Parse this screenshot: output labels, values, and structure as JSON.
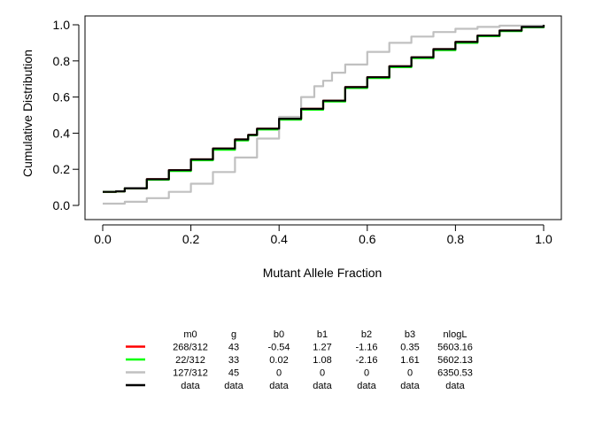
{
  "chart_data": {
    "type": "line",
    "title": "",
    "xlabel": "Mutant Allele Fraction",
    "ylabel": "Cumulative Distribution",
    "xlim": [
      0,
      1
    ],
    "ylim": [
      0,
      1
    ],
    "x_ticks": [
      "0.0",
      "0.2",
      "0.4",
      "0.6",
      "0.8",
      "1.0"
    ],
    "y_ticks": [
      "0.0",
      "0.2",
      "0.4",
      "0.6",
      "0.8",
      "1.0"
    ],
    "grid": false,
    "series": [
      {
        "color": "#ff0000",
        "points": [
          [
            0,
            0.075
          ],
          [
            0.03,
            0.078
          ],
          [
            0.05,
            0.095
          ],
          [
            0.1,
            0.145
          ],
          [
            0.15,
            0.195
          ],
          [
            0.2,
            0.255
          ],
          [
            0.25,
            0.315
          ],
          [
            0.3,
            0.365
          ],
          [
            0.33,
            0.39
          ],
          [
            0.35,
            0.425
          ],
          [
            0.4,
            0.48
          ],
          [
            0.45,
            0.535
          ],
          [
            0.5,
            0.58
          ],
          [
            0.55,
            0.655
          ],
          [
            0.6,
            0.71
          ],
          [
            0.65,
            0.77
          ],
          [
            0.7,
            0.82
          ],
          [
            0.75,
            0.865
          ],
          [
            0.8,
            0.905
          ],
          [
            0.85,
            0.94
          ],
          [
            0.9,
            0.968
          ],
          [
            0.95,
            0.988
          ],
          [
            1.0,
            1.0
          ]
        ]
      },
      {
        "color": "#00ff00",
        "points": [
          [
            0,
            0.075
          ],
          [
            0.03,
            0.078
          ],
          [
            0.05,
            0.095
          ],
          [
            0.1,
            0.142
          ],
          [
            0.15,
            0.19
          ],
          [
            0.2,
            0.25
          ],
          [
            0.25,
            0.308
          ],
          [
            0.3,
            0.36
          ],
          [
            0.33,
            0.388
          ],
          [
            0.35,
            0.42
          ],
          [
            0.4,
            0.475
          ],
          [
            0.45,
            0.53
          ],
          [
            0.5,
            0.575
          ],
          [
            0.55,
            0.65
          ],
          [
            0.6,
            0.705
          ],
          [
            0.65,
            0.765
          ],
          [
            0.7,
            0.815
          ],
          [
            0.75,
            0.86
          ],
          [
            0.8,
            0.9
          ],
          [
            0.85,
            0.937
          ],
          [
            0.9,
            0.965
          ],
          [
            0.95,
            0.986
          ],
          [
            1.0,
            1.0
          ]
        ]
      },
      {
        "color": "#c0c0c0",
        "points": [
          [
            0,
            0.01
          ],
          [
            0.05,
            0.02
          ],
          [
            0.1,
            0.04
          ],
          [
            0.15,
            0.075
          ],
          [
            0.2,
            0.12
          ],
          [
            0.25,
            0.185
          ],
          [
            0.3,
            0.265
          ],
          [
            0.35,
            0.37
          ],
          [
            0.4,
            0.49
          ],
          [
            0.45,
            0.6
          ],
          [
            0.48,
            0.66
          ],
          [
            0.5,
            0.69
          ],
          [
            0.52,
            0.735
          ],
          [
            0.55,
            0.78
          ],
          [
            0.6,
            0.85
          ],
          [
            0.65,
            0.9
          ],
          [
            0.7,
            0.935
          ],
          [
            0.75,
            0.96
          ],
          [
            0.8,
            0.978
          ],
          [
            0.85,
            0.988
          ],
          [
            0.9,
            0.995
          ],
          [
            1.0,
            1.0
          ]
        ]
      },
      {
        "color": "#000000",
        "points": [
          [
            0,
            0.075
          ],
          [
            0.03,
            0.078
          ],
          [
            0.05,
            0.095
          ],
          [
            0.1,
            0.145
          ],
          [
            0.15,
            0.195
          ],
          [
            0.2,
            0.255
          ],
          [
            0.25,
            0.315
          ],
          [
            0.3,
            0.365
          ],
          [
            0.33,
            0.39
          ],
          [
            0.35,
            0.425
          ],
          [
            0.4,
            0.48
          ],
          [
            0.45,
            0.535
          ],
          [
            0.5,
            0.58
          ],
          [
            0.55,
            0.655
          ],
          [
            0.6,
            0.71
          ],
          [
            0.65,
            0.77
          ],
          [
            0.7,
            0.82
          ],
          [
            0.75,
            0.865
          ],
          [
            0.8,
            0.905
          ],
          [
            0.85,
            0.94
          ],
          [
            0.9,
            0.968
          ],
          [
            0.95,
            0.988
          ],
          [
            1.0,
            1.0
          ]
        ]
      }
    ],
    "legend": {
      "placement": "bottom",
      "headers": [
        "m0",
        "g",
        "b0",
        "b1",
        "b2",
        "b3",
        "nlogL"
      ],
      "rows": [
        {
          "color": "#ff0000",
          "cells": [
            "268/312",
            "43",
            "-0.54",
            "1.27",
            "-1.16",
            "0.35",
            "5603.16"
          ]
        },
        {
          "color": "#00ff00",
          "cells": [
            "22/312",
            "33",
            "0.02",
            "1.08",
            "-2.16",
            "1.61",
            "5602.13"
          ]
        },
        {
          "color": "#c0c0c0",
          "cells": [
            "127/312",
            "45",
            "0",
            "0",
            "0",
            "0",
            "6350.53"
          ]
        },
        {
          "color": "#000000",
          "cells": [
            "data",
            "data",
            "data",
            "data",
            "data",
            "data",
            "data"
          ]
        }
      ]
    }
  }
}
